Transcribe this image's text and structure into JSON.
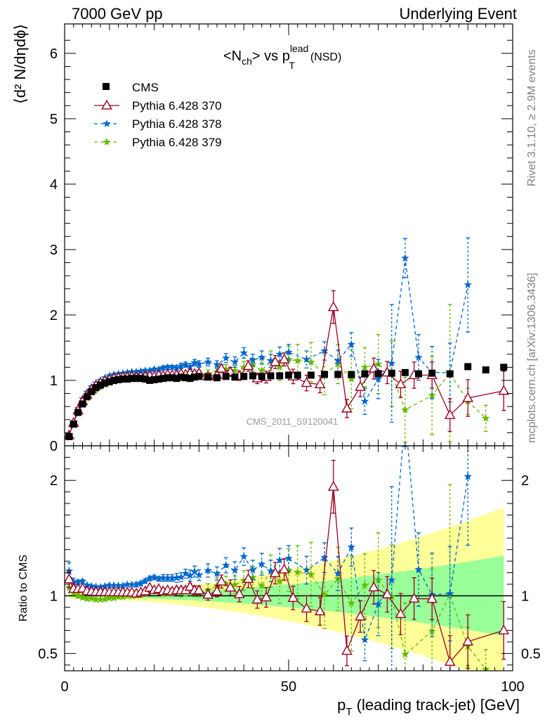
{
  "header": {
    "left": "7000 GeV pp",
    "right": "Underlying Event"
  },
  "side_text": {
    "rivet": "Rivet 3.1.10, ≥ 2.9M events",
    "mcplots": "mcplots.cern.ch [arXiv:1306.3436]"
  },
  "watermark": "CMS_2011_S9120041",
  "chart_data": {
    "type": "scatter",
    "title_main": "<N",
    "title_sub": "ch",
    "title_mid": "> vs p",
    "title_sup": "lead",
    "title_sub2": "T",
    "title_tail": "(NSD)",
    "xlabel_main": "p",
    "xlabel_sub": "T",
    "xlabel_tail": " (leading track-jet) [GeV]",
    "ylabel": "⟨d² N/dηdϕ⟩",
    "ratio_ylabel": "Ratio to CMS",
    "xlim": [
      0,
      100
    ],
    "ylim": [
      0,
      6.45
    ],
    "ratio_ylim": [
      0.35,
      2.3
    ],
    "x_ticks": [
      "0",
      "50",
      "100"
    ],
    "y_ticks": [
      "0",
      "1",
      "2",
      "3",
      "4",
      "5",
      "6"
    ],
    "ratio_ticks": [
      "0.5",
      "1",
      "2"
    ],
    "band_colors": {
      "outer": "#ffff99",
      "inner": "#99ff99"
    },
    "legend": [
      "CMS",
      "Pythia 6.428 370",
      "Pythia 6.428 378",
      "Pythia 6.428 379"
    ],
    "series": [
      {
        "name": "CMS",
        "color": "#000000",
        "x": [
          1,
          2,
          3,
          4,
          5,
          6,
          7,
          8,
          9,
          10,
          11,
          12,
          13,
          14,
          15,
          16,
          17,
          18,
          19,
          20,
          21,
          22,
          23,
          24,
          25,
          26,
          27,
          28,
          29,
          30,
          32,
          34,
          36,
          38,
          40,
          42,
          44,
          46,
          48,
          50,
          52,
          55,
          58,
          61,
          64,
          67,
          70,
          73,
          76,
          79,
          82,
          86,
          90,
          94,
          98
        ],
        "y": [
          0.14,
          0.33,
          0.51,
          0.64,
          0.75,
          0.83,
          0.89,
          0.93,
          0.96,
          0.98,
          1.0,
          1.01,
          1.02,
          1.02,
          1.03,
          1.03,
          1.03,
          1.02,
          1.0,
          1.01,
          1.02,
          1.03,
          1.04,
          1.04,
          1.03,
          1.05,
          1.04,
          1.03,
          1.05,
          1.06,
          1.05,
          1.04,
          1.06,
          1.05,
          1.06,
          1.07,
          1.06,
          1.07,
          1.07,
          1.08,
          1.08,
          1.08,
          1.09,
          1.09,
          1.09,
          1.1,
          1.1,
          1.11,
          1.12,
          1.1,
          1.11,
          1.1,
          1.21,
          1.16,
          1.2
        ]
      },
      {
        "name": "Pythia 6.428 370",
        "color": "#990022",
        "x": [
          1,
          2,
          3,
          4,
          5,
          6,
          7,
          8,
          9,
          10,
          11,
          12,
          13,
          14,
          15,
          16,
          17,
          18,
          19,
          20,
          21,
          22,
          23,
          24,
          25,
          26,
          27,
          28,
          29,
          30,
          32,
          34,
          35,
          37,
          39,
          41,
          43,
          45,
          47,
          49,
          51,
          54,
          57,
          60,
          63,
          66,
          69,
          72,
          75,
          78,
          82,
          86,
          90,
          98
        ],
        "y": [
          0.16,
          0.35,
          0.54,
          0.68,
          0.78,
          0.86,
          0.92,
          0.96,
          0.99,
          1.01,
          1.03,
          1.04,
          1.05,
          1.05,
          1.06,
          1.05,
          1.06,
          1.06,
          1.07,
          1.06,
          1.08,
          1.07,
          1.09,
          1.08,
          1.08,
          1.1,
          1.09,
          1.11,
          1.1,
          1.11,
          1.06,
          1.08,
          1.18,
          1.13,
          1.07,
          1.22,
          1.03,
          1.05,
          1.28,
          1.32,
          1.06,
          0.96,
          0.94,
          2.12,
          0.57,
          0.9,
          1.18,
          1.12,
          0.94,
          1.08,
          1.08,
          0.47,
          0.73,
          0.84
        ],
        "err": [
          0.01,
          0.01,
          0.01,
          0.01,
          0.01,
          0.01,
          0.01,
          0.01,
          0.01,
          0.01,
          0.01,
          0.01,
          0.01,
          0.01,
          0.01,
          0.01,
          0.01,
          0.01,
          0.01,
          0.01,
          0.01,
          0.01,
          0.01,
          0.02,
          0.02,
          0.02,
          0.03,
          0.03,
          0.04,
          0.04,
          0.05,
          0.05,
          0.06,
          0.07,
          0.07,
          0.08,
          0.08,
          0.09,
          0.1,
          0.1,
          0.11,
          0.12,
          0.13,
          0.25,
          0.14,
          0.15,
          0.16,
          0.17,
          0.2,
          0.2,
          0.2,
          0.25,
          0.28,
          0.3
        ]
      },
      {
        "name": "Pythia 6.428 378",
        "color": "#0066cc",
        "x": [
          1,
          2,
          3,
          4,
          5,
          6,
          7,
          8,
          9,
          10,
          11,
          12,
          13,
          14,
          15,
          16,
          17,
          18,
          19,
          20,
          21,
          22,
          23,
          24,
          25,
          26,
          27,
          28,
          29,
          30,
          32,
          34,
          36,
          38,
          40,
          42,
          44,
          46,
          48,
          50,
          54,
          58,
          61,
          64,
          67,
          70,
          73,
          76,
          79,
          82,
          86,
          90
        ],
        "y": [
          0.17,
          0.37,
          0.57,
          0.72,
          0.82,
          0.9,
          0.96,
          1.0,
          1.04,
          1.07,
          1.09,
          1.1,
          1.11,
          1.12,
          1.13,
          1.13,
          1.14,
          1.15,
          1.15,
          1.17,
          1.17,
          1.19,
          1.2,
          1.2,
          1.19,
          1.22,
          1.24,
          1.21,
          1.27,
          1.25,
          1.28,
          1.24,
          1.34,
          1.28,
          1.42,
          1.31,
          1.35,
          1.3,
          1.4,
          1.43,
          1.32,
          1.45,
          1.3,
          1.55,
          0.68,
          1.02,
          1.26,
          2.87,
          1.35,
          1.12,
          1.12,
          2.46
        ],
        "err": [
          0.01,
          0.01,
          0.01,
          0.01,
          0.01,
          0.01,
          0.01,
          0.01,
          0.01,
          0.01,
          0.01,
          0.01,
          0.01,
          0.01,
          0.01,
          0.02,
          0.02,
          0.02,
          0.02,
          0.02,
          0.02,
          0.03,
          0.03,
          0.03,
          0.04,
          0.04,
          0.04,
          0.05,
          0.05,
          0.05,
          0.06,
          0.06,
          0.07,
          0.08,
          0.08,
          0.09,
          0.1,
          0.1,
          0.11,
          0.12,
          0.13,
          0.14,
          0.16,
          0.18,
          0.2,
          0.3,
          0.9,
          0.3,
          0.35,
          0.4,
          0.45,
          0.72
        ]
      },
      {
        "name": "Pythia 6.428 379",
        "color": "#66bb00",
        "x": [
          1,
          2,
          3,
          4,
          5,
          6,
          7,
          8,
          9,
          10,
          11,
          12,
          13,
          14,
          15,
          16,
          17,
          18,
          19,
          20,
          21,
          22,
          23,
          24,
          25,
          26,
          27,
          28,
          29,
          30,
          32,
          34,
          36,
          38,
          40,
          42,
          44,
          46,
          48,
          50,
          52,
          55,
          58,
          61,
          64,
          67,
          70,
          73,
          76,
          82,
          86,
          90,
          94
        ],
        "y": [
          0.15,
          0.34,
          0.51,
          0.63,
          0.73,
          0.81,
          0.86,
          0.9,
          0.93,
          0.96,
          0.98,
          1.0,
          1.01,
          1.02,
          1.03,
          1.03,
          1.04,
          1.04,
          1.05,
          1.05,
          1.06,
          1.06,
          1.07,
          1.07,
          1.08,
          1.08,
          1.08,
          1.09,
          1.09,
          1.1,
          1.1,
          1.13,
          1.17,
          1.15,
          1.2,
          1.24,
          1.15,
          1.3,
          1.2,
          1.32,
          1.3,
          1.28,
          1.1,
          1.25,
          1.02,
          1.2,
          1.25,
          1.1,
          0.55,
          0.77,
          1.11,
          0.68,
          0.42
        ],
        "err": [
          0.01,
          0.01,
          0.01,
          0.01,
          0.01,
          0.01,
          0.01,
          0.01,
          0.01,
          0.01,
          0.01,
          0.01,
          0.01,
          0.01,
          0.01,
          0.01,
          0.02,
          0.02,
          0.02,
          0.02,
          0.02,
          0.03,
          0.03,
          0.03,
          0.03,
          0.04,
          0.04,
          0.04,
          0.05,
          0.05,
          0.06,
          0.07,
          0.07,
          0.08,
          0.09,
          0.1,
          0.12,
          0.15,
          0.2,
          0.2,
          0.25,
          0.3,
          0.32,
          0.3,
          0.45,
          0.3,
          0.45,
          0.5,
          0.5,
          0.6,
          1.05,
          0.2,
          0.2
        ]
      }
    ]
  }
}
